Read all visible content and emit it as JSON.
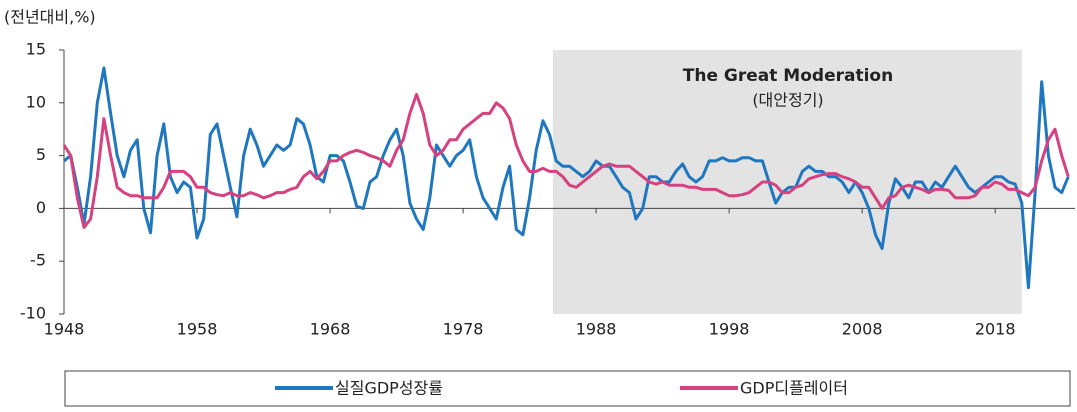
{
  "chart_data": {
    "type": "line",
    "y_unit_label": "(전년대비,%)",
    "annotation": {
      "title": "The Great Moderation",
      "subtitle": "(대안정기)"
    },
    "shaded_range": [
      1984.75,
      2020
    ],
    "xlim": [
      1948,
      2024
    ],
    "xticks": [
      1948,
      1958,
      1968,
      1978,
      1988,
      1998,
      2008,
      2018
    ],
    "ylim": [
      -10,
      15
    ],
    "yticks": [
      -10,
      -5,
      0,
      5,
      10,
      15
    ],
    "x": [
      1948,
      1948.5,
      1949,
      1949.5,
      1950,
      1950.5,
      1951,
      1951.5,
      1952,
      1952.5,
      1953,
      1953.5,
      1954,
      1954.5,
      1955,
      1955.5,
      1956,
      1956.5,
      1957,
      1957.5,
      1958,
      1958.5,
      1959,
      1959.5,
      1960,
      1960.5,
      1961,
      1961.5,
      1962,
      1962.5,
      1963,
      1963.5,
      1964,
      1964.5,
      1965,
      1965.5,
      1966,
      1966.5,
      1967,
      1967.5,
      1968,
      1968.5,
      1969,
      1969.5,
      1970,
      1970.5,
      1971,
      1971.5,
      1972,
      1972.5,
      1973,
      1973.5,
      1974,
      1974.5,
      1975,
      1975.5,
      1976,
      1976.5,
      1977,
      1977.5,
      1978,
      1978.5,
      1979,
      1979.5,
      1980,
      1980.5,
      1981,
      1981.5,
      1982,
      1982.5,
      1983,
      1983.5,
      1984,
      1984.5,
      1985,
      1985.5,
      1986,
      1986.5,
      1987,
      1987.5,
      1988,
      1988.5,
      1989,
      1989.5,
      1990,
      1990.5,
      1991,
      1991.5,
      1992,
      1992.5,
      1993,
      1993.5,
      1994,
      1994.5,
      1995,
      1995.5,
      1996,
      1996.5,
      1997,
      1997.5,
      1998,
      1998.5,
      1999,
      1999.5,
      2000,
      2000.5,
      2001,
      2001.5,
      2002,
      2002.5,
      2003,
      2003.5,
      2004,
      2004.5,
      2005,
      2005.5,
      2006,
      2006.5,
      2007,
      2007.5,
      2008,
      2008.5,
      2009,
      2009.5,
      2010,
      2010.5,
      2011,
      2011.5,
      2012,
      2012.5,
      2013,
      2013.5,
      2014,
      2014.5,
      2015,
      2015.5,
      2016,
      2016.5,
      2017,
      2017.5,
      2018,
      2018.5,
      2019,
      2019.5,
      2020,
      2020.5,
      2021,
      2021.5,
      2022,
      2022.5,
      2023,
      2023.5
    ],
    "series": [
      {
        "name": "실질GDP성장률",
        "color": "#1f77bf",
        "values": [
          4.5,
          5,
          2,
          -1.5,
          3,
          10,
          13.3,
          9,
          5,
          3,
          5.5,
          6.5,
          0,
          -2.3,
          5,
          8,
          3,
          1.5,
          2.5,
          2,
          -2.8,
          -1,
          7,
          8,
          5,
          2,
          -0.8,
          5,
          7.5,
          6,
          4,
          5,
          6,
          5.5,
          6,
          8.5,
          8,
          6,
          3,
          2.5,
          5,
          5,
          4.5,
          2.5,
          0.2,
          0,
          2.5,
          3,
          5,
          6.5,
          7.5,
          5,
          0.5,
          -1,
          -2,
          1,
          6,
          5,
          4,
          5,
          5.5,
          6.5,
          3,
          1,
          0,
          -1,
          2,
          4,
          -2,
          -2.5,
          1,
          5.5,
          8.3,
          7,
          4.5,
          4,
          4,
          3.5,
          3,
          3.5,
          4.5,
          4,
          4,
          3,
          2,
          1.5,
          -1,
          0,
          3,
          3,
          2.5,
          2.5,
          3.5,
          4.2,
          3,
          2.5,
          3,
          4.5,
          4.5,
          4.8,
          4.5,
          4.5,
          4.8,
          4.8,
          4.5,
          4.5,
          2.5,
          0.5,
          1.5,
          2,
          2,
          3.5,
          4,
          3.5,
          3.5,
          3,
          3,
          2.5,
          1.5,
          2.5,
          1.5,
          0,
          -2.5,
          -3.8,
          0.5,
          2.8,
          2,
          1,
          2.5,
          2.5,
          1.5,
          2.5,
          2,
          3,
          4,
          3,
          2,
          1.5,
          2,
          2.5,
          3,
          3,
          2.5,
          2.3,
          0.5,
          -7.5,
          1.5,
          12,
          5,
          2,
          1.5,
          3
        ]
      },
      {
        "name": "GDP디플레이터",
        "color": "#d6417f",
        "values": [
          6,
          5,
          1,
          -1.8,
          -1,
          3,
          8.5,
          5,
          2,
          1.5,
          1.2,
          1.2,
          1,
          1,
          1,
          2,
          3.5,
          3.5,
          3.5,
          3,
          2,
          2,
          1.5,
          1.3,
          1.2,
          1.5,
          1.2,
          1.2,
          1.5,
          1.3,
          1,
          1.2,
          1.5,
          1.5,
          1.8,
          2,
          3,
          3.5,
          2.8,
          3.5,
          4.5,
          4.5,
          5,
          5.3,
          5.5,
          5.3,
          5,
          4.8,
          4.5,
          4,
          5.5,
          6.5,
          9,
          10.8,
          9,
          6,
          5,
          5.5,
          6.5,
          6.5,
          7.5,
          8,
          8.5,
          9,
          9,
          10,
          9.5,
          8.5,
          6,
          4.5,
          3.5,
          3.5,
          3.8,
          3.5,
          3.5,
          3,
          2.2,
          2,
          2.5,
          3,
          3.5,
          4,
          4.2,
          4,
          4,
          4,
          3.5,
          3,
          2.5,
          2.3,
          2.5,
          2.2,
          2.2,
          2.2,
          2,
          2,
          1.8,
          1.8,
          1.8,
          1.5,
          1.2,
          1.2,
          1.3,
          1.5,
          2,
          2.5,
          2.5,
          2.2,
          1.5,
          1.5,
          2,
          2.2,
          2.8,
          3,
          3.2,
          3.3,
          3.3,
          3,
          2.8,
          2.5,
          2,
          2,
          1,
          0,
          1,
          1.2,
          2,
          2.2,
          2,
          1.8,
          1.5,
          1.8,
          1.8,
          1.7,
          1,
          1,
          1,
          1.2,
          2,
          2,
          2.5,
          2.3,
          1.8,
          1.8,
          1.5,
          1.2,
          2,
          4.5,
          6.5,
          7.5,
          5,
          3
        ]
      }
    ]
  }
}
